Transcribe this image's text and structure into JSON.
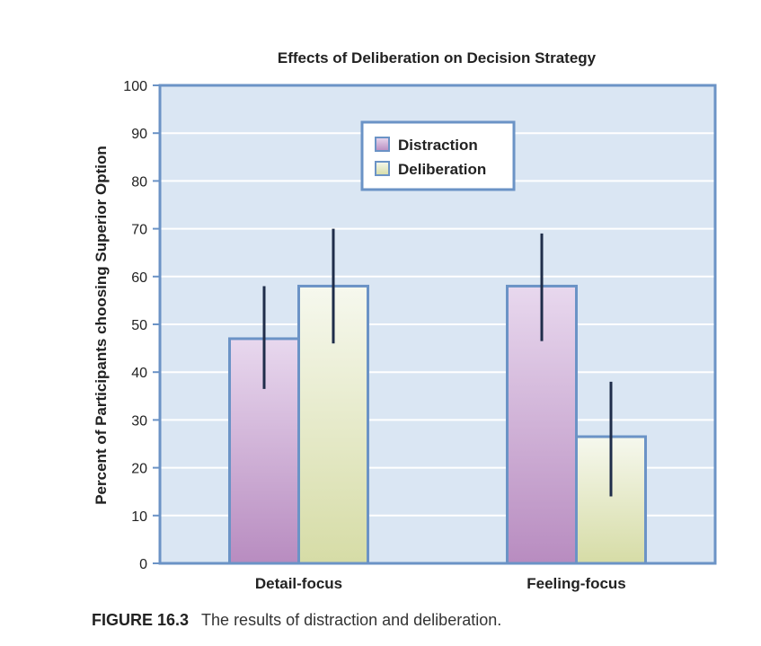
{
  "chart_data": {
    "type": "bar",
    "title": "Effects of Deliberation on Decision Strategy",
    "xlabel": "",
    "ylabel": "Percent of Participants choosing Superior Option",
    "ylim": [
      0,
      100
    ],
    "yticks": [
      0,
      10,
      20,
      30,
      40,
      50,
      60,
      70,
      80,
      90,
      100
    ],
    "categories": [
      "Detail-focus",
      "Feeling-focus"
    ],
    "series": [
      {
        "name": "Distraction",
        "values": [
          47,
          58
        ],
        "error_low": [
          36.5,
          46.5
        ],
        "error_high": [
          58,
          69
        ],
        "color_top": "#e8d8ee",
        "color_bottom": "#b88cc0"
      },
      {
        "name": "Deliberation",
        "values": [
          58,
          26.5
        ],
        "error_low": [
          46,
          14
        ],
        "error_high": [
          70,
          38
        ],
        "color_top": "#f6f8ee",
        "color_bottom": "#d6dca6"
      }
    ],
    "grid": true,
    "legend_position": "top-center",
    "colors": {
      "plot_bg": "#dae6f3",
      "border": "#6b93c6",
      "grid": "#ffffff",
      "error_bar": "#1f2d4a"
    }
  },
  "caption": {
    "figure_label": "FIGURE 16.3",
    "text": "The results of distraction and deliberation."
  }
}
